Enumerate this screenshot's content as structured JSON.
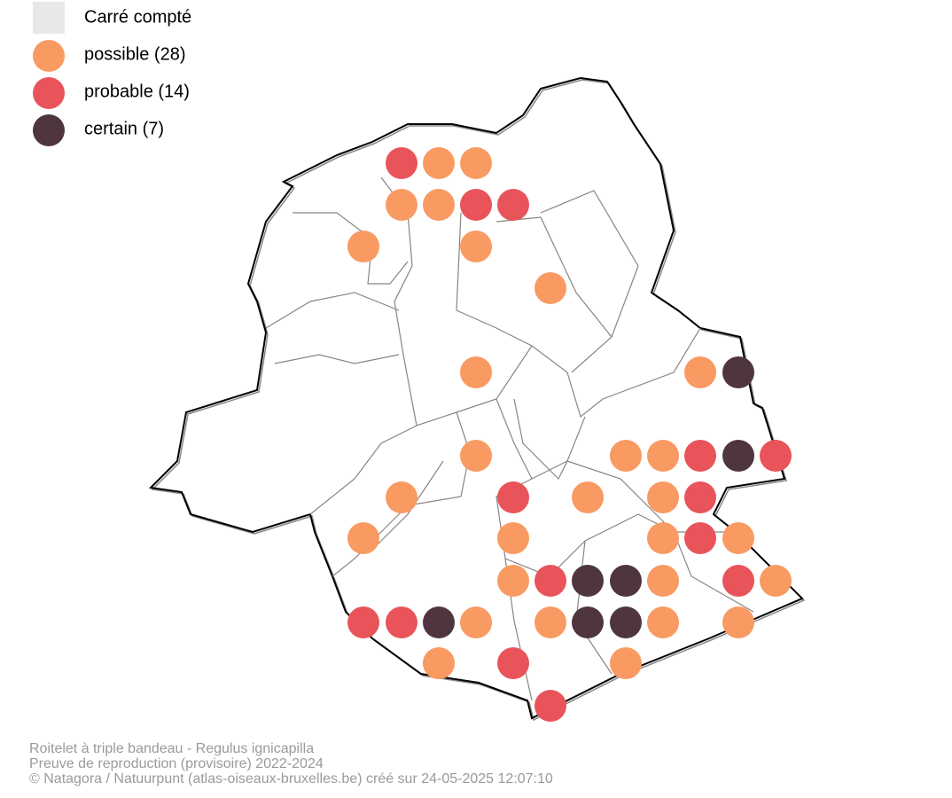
{
  "legend": {
    "items": [
      {
        "label": "Carré compté",
        "color": "#e8e8e8"
      },
      {
        "label": "possible (28)",
        "color": "#f99a62"
      },
      {
        "label": "probable (14)",
        "color": "#e8545a"
      },
      {
        "label": "certain (7)",
        "color": "#4e3540"
      }
    ]
  },
  "footer": {
    "lines": [
      "Roitelet à triple bandeau - Regulus ignicapilla",
      "Preuve de reproduction (provisoire) 2022-2024",
      "© Natagora / Natuurpunt (atlas-oiseaux-bruxelles.be) créé sur 24-05-2025 12:07:10"
    ]
  }
}
